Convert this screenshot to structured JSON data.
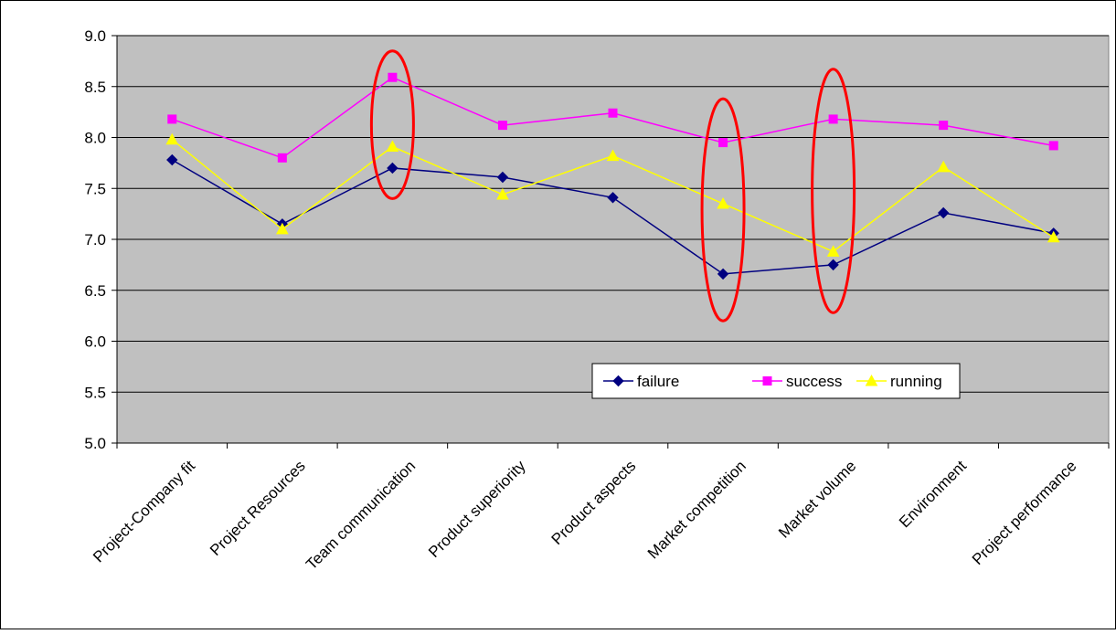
{
  "chart_data": {
    "type": "line",
    "title": "",
    "xlabel": "",
    "ylabel": "",
    "categories": [
      "Project-Company fit",
      "Project Resources",
      "Team communication",
      "Product superiority",
      "Product aspects",
      "Market competition",
      "Market volume",
      "Environment",
      "Project performance"
    ],
    "ylim": [
      5.0,
      9.0
    ],
    "yticks": [
      "5.0",
      "5.5",
      "6.0",
      "6.5",
      "7.0",
      "7.5",
      "8.0",
      "8.5",
      "9.0"
    ],
    "grid": true,
    "plot_background": "#c0c0c0",
    "legend_position": "inside-bottom-right",
    "series": [
      {
        "name": "failure",
        "color": "#000080",
        "marker": "diamond",
        "values": [
          7.78,
          7.15,
          7.7,
          7.61,
          7.41,
          6.66,
          6.75,
          7.26,
          7.06
        ]
      },
      {
        "name": "success",
        "color": "#ff00ff",
        "marker": "square",
        "values": [
          8.18,
          7.8,
          8.59,
          8.12,
          8.24,
          7.95,
          8.18,
          8.12,
          7.92
        ]
      },
      {
        "name": "running",
        "color": "#ffff00",
        "marker": "triangle",
        "values": [
          7.98,
          7.1,
          7.91,
          7.44,
          7.82,
          7.35,
          6.88,
          7.71,
          7.02
        ]
      }
    ],
    "annotations": [
      {
        "shape": "ellipse",
        "color": "#ff0000",
        "category": "Team communication",
        "y_range": [
          7.4,
          8.85
        ]
      },
      {
        "shape": "ellipse",
        "color": "#ff0000",
        "category": "Market competition",
        "y_range": [
          6.2,
          8.38
        ]
      },
      {
        "shape": "ellipse",
        "color": "#ff0000",
        "category": "Market volume",
        "y_range": [
          6.28,
          8.67
        ]
      }
    ]
  }
}
